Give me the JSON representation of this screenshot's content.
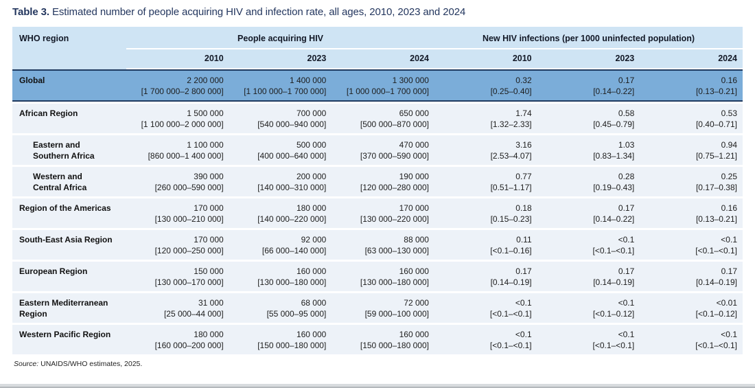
{
  "page": {
    "title_label": "Table 3.",
    "title_text": "Estimated number of people acquiring HIV and infection rate, all ages, 2010, 2023 and 2024",
    "source_label": "Source:",
    "source_text": " UNAIDS/WHO estimates, 2025."
  },
  "colors": {
    "header_bg": "#cfe4f4",
    "highlight_row_bg": "#7badd9",
    "row_bg": "#edf2f8",
    "title_navy": "#23365e",
    "rule_navy": "#1f3a60"
  },
  "table": {
    "region_header": "WHO region",
    "group_headers": [
      {
        "label": "People acquiring HIV"
      },
      {
        "label": "New HIV infections (per 1000 uninfected population)"
      }
    ],
    "year_headers": [
      "2010",
      "2023",
      "2024",
      "2010",
      "2023",
      "2024"
    ],
    "rows": [
      {
        "region": "Global",
        "highlight": true,
        "indent": false,
        "values": [
          "2 200 000",
          "1 400 000",
          "1 300 000",
          "0.32",
          "0.17",
          "0.16"
        ],
        "ranges": [
          "[1 700 000–2 800 000]",
          "[1 100 000–1 700 000]",
          "[1 000 000–1 700 000]",
          "[0.25–0.40]",
          "[0.14–0.22]",
          "[0.13–0.21]"
        ]
      },
      {
        "region": "African Region",
        "highlight": false,
        "indent": false,
        "values": [
          "1 500 000",
          "700 000",
          "650 000",
          "1.74",
          "0.58",
          "0.53"
        ],
        "ranges": [
          "[1 100 000–2 000 000]",
          "[540 000–940 000]",
          "[500 000–870 000]",
          "[1.32–2.33]",
          "[0.45–0.79]",
          "[0.40–0.71]"
        ]
      },
      {
        "region": "Eastern and\nSouthern Africa",
        "highlight": false,
        "indent": true,
        "values": [
          "1 100 000",
          "500 000",
          "470 000",
          "3.16",
          "1.03",
          "0.94"
        ],
        "ranges": [
          "[860 000–1 400 000]",
          "[400 000–640 000]",
          "[370 000–590 000]",
          "[2.53–4.07]",
          "[0.83–1.34]",
          "[0.75–1.21]"
        ]
      },
      {
        "region": "Western and\nCentral Africa",
        "highlight": false,
        "indent": true,
        "values": [
          "390 000",
          "200 000",
          "190 000",
          "0.77",
          "0.28",
          "0.25"
        ],
        "ranges": [
          "[260 000–590 000]",
          "[140 000–310 000]",
          "[120 000–280 000]",
          "[0.51–1.17]",
          "[0.19–0.43]",
          "[0.17–0.38]"
        ]
      },
      {
        "region": "Region of the Americas",
        "highlight": false,
        "indent": false,
        "values": [
          "170 000",
          "180 000",
          "170 000",
          "0.18",
          "0.17",
          "0.16"
        ],
        "ranges": [
          "[130 000–210 000]",
          "[140 000–220 000]",
          "[130 000–220 000]",
          "[0.15–0.23]",
          "[0.14–0.22]",
          "[0.13–0.21]"
        ]
      },
      {
        "region": "South-East Asia Region",
        "highlight": false,
        "indent": false,
        "values": [
          "170 000",
          "92 000",
          "88 000",
          "0.11",
          "<0.1",
          "<0.1"
        ],
        "ranges": [
          "[120 000–250 000]",
          "[66 000–140 000]",
          "[63 000–130 000]",
          "[<0.1–0.16]",
          "[<0.1–<0.1]",
          "[<0.1–<0.1]"
        ]
      },
      {
        "region": "European Region",
        "highlight": false,
        "indent": false,
        "values": [
          "150 000",
          "160 000",
          "160 000",
          "0.17",
          "0.17",
          "0.17"
        ],
        "ranges": [
          "[130 000–170 000]",
          "[130 000–180 000]",
          "[130 000–180 000]",
          "[0.14–0.19]",
          "[0.14–0.19]",
          "[0.14–0.19]"
        ]
      },
      {
        "region": "Eastern Mediterranean\nRegion",
        "highlight": false,
        "indent": false,
        "values": [
          "31 000",
          "68 000",
          "72 000",
          "<0.1",
          "<0.1",
          "<0.01"
        ],
        "ranges": [
          "[25 000–44 000]",
          "[55 000–95 000]",
          "[59 000–100 000]",
          "[<0.1–<0.1]",
          "[<0.1–0.12]",
          "[<0.1–0.12]"
        ]
      },
      {
        "region": "Western Pacific Region",
        "highlight": false,
        "indent": false,
        "values": [
          "180 000",
          "160 000",
          "160 000",
          "<0.1",
          "<0.1",
          "<0.1"
        ],
        "ranges": [
          "[160 000–200 000]",
          "[150 000–180 000]",
          "[150 000–180 000]",
          "[<0.1–<0.1]",
          "[<0.1–<0.1]",
          "[<0.1–<0.1]"
        ]
      }
    ]
  }
}
